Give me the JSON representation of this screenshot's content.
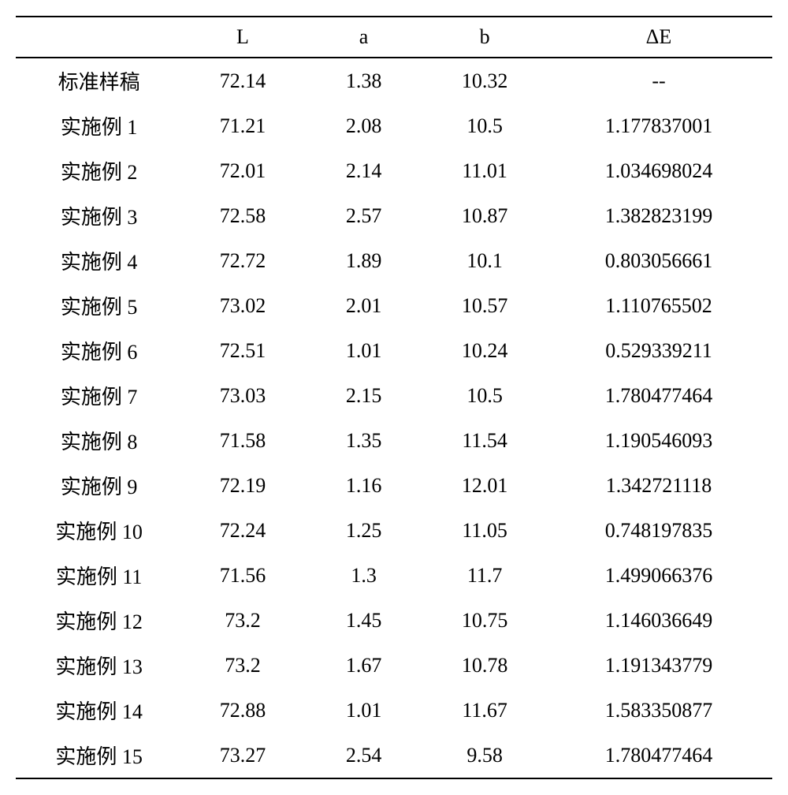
{
  "table": {
    "columns": [
      "",
      "L",
      "a",
      "b",
      "ΔE"
    ],
    "rows": [
      [
        "标准样稿",
        "72.14",
        "1.38",
        "10.32",
        "--"
      ],
      [
        "实施例 1",
        "71.21",
        "2.08",
        "10.5",
        "1.177837001"
      ],
      [
        "实施例 2",
        "72.01",
        "2.14",
        "11.01",
        "1.034698024"
      ],
      [
        "实施例 3",
        "72.58",
        "2.57",
        "10.87",
        "1.382823199"
      ],
      [
        "实施例 4",
        "72.72",
        "1.89",
        "10.1",
        "0.803056661"
      ],
      [
        "实施例 5",
        "73.02",
        "2.01",
        "10.57",
        "1.110765502"
      ],
      [
        "实施例 6",
        "72.51",
        "1.01",
        "10.24",
        "0.529339211"
      ],
      [
        "实施例 7",
        "73.03",
        "2.15",
        "10.5",
        "1.780477464"
      ],
      [
        "实施例 8",
        "71.58",
        "1.35",
        "11.54",
        "1.190546093"
      ],
      [
        "实施例 9",
        "72.19",
        "1.16",
        "12.01",
        "1.342721118"
      ],
      [
        "实施例 10",
        "72.24",
        "1.25",
        "11.05",
        "0.748197835"
      ],
      [
        "实施例 11",
        "71.56",
        "1.3",
        "11.7",
        "1.499066376"
      ],
      [
        "实施例 12",
        "73.2",
        "1.45",
        "10.75",
        "1.146036649"
      ],
      [
        "实施例 13",
        "73.2",
        "1.67",
        "10.78",
        "1.191343779"
      ],
      [
        "实施例 14",
        "72.88",
        "1.01",
        "11.67",
        "1.583350877"
      ],
      [
        "实施例 15",
        "73.27",
        "2.54",
        "9.58",
        "1.780477464"
      ]
    ],
    "styles": {
      "border_color": "#000000",
      "border_width_outer": 2,
      "background_color": "#ffffff",
      "text_color": "#000000",
      "font_size": 26,
      "cell_padding_v": 10,
      "cell_padding_h": 4,
      "col_widths_pct": [
        22,
        16,
        16,
        16,
        30
      ],
      "text_align": "center"
    }
  }
}
